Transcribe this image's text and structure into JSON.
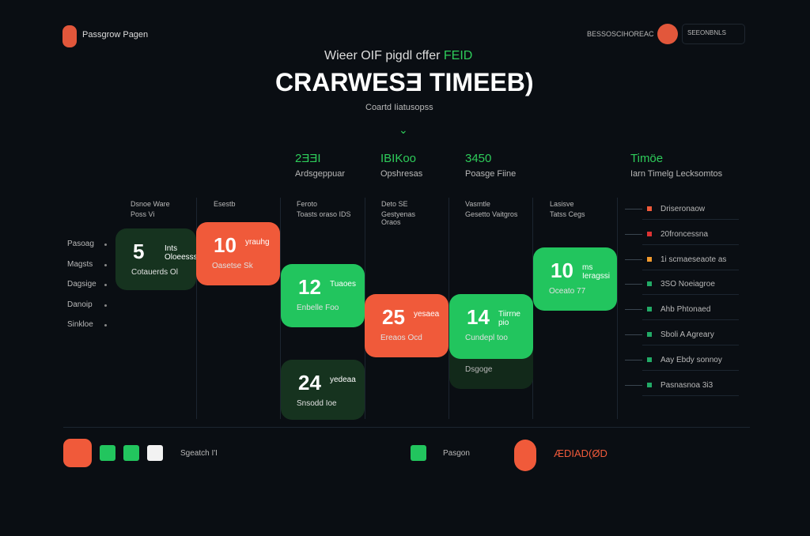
{
  "header": {
    "brand": "Passgrow Pagen",
    "status": "BESSOSCIHOREAC",
    "account": "SEEONBNLS"
  },
  "hero": {
    "kicker": "Wieer OIF pigdl cffer",
    "kicker_highlight": "FEID",
    "title": "CRARWESƎ TIMEEB)",
    "caption": "Coartd Iiatusopss"
  },
  "columns": [
    {
      "figure": "2ƎƎI",
      "label": "Ardsgeppuar"
    },
    {
      "figure": "IBIKoo",
      "label": "Opshresas"
    },
    {
      "figure": "3450",
      "label": "Poasge Fiine"
    },
    {
      "figure": "Timöe",
      "label": "Iarn Timelg Lecksomtos"
    }
  ],
  "subheads": [
    {
      "title": "Dsnoe Ware",
      "detail": "Poss Vi"
    },
    {
      "title": "Esestb",
      "detail": ""
    },
    {
      "title": "Feroto",
      "detail": "Toasts oraso IDS"
    },
    {
      "title": "Deto SE",
      "detail": "Gestyenas Oraos"
    },
    {
      "title": "Vasmtle",
      "detail": "Gesetto Vaitgros"
    },
    {
      "title": "Lasisve",
      "detail": "Tatss Cegs"
    }
  ],
  "rows": [
    "Pasoag",
    "Magsts",
    "Dagsige",
    "Danoip",
    "Sinkloe"
  ],
  "cards": [
    {
      "value": "5",
      "unit": "Ints Oloeesss",
      "label": "Cotauerds Ol"
    },
    {
      "value": "10",
      "unit": "yrauhg",
      "label": "Oasetse Sk"
    },
    {
      "value": "12",
      "unit": "Tuaoes",
      "label": "Enbelle Foo"
    },
    {
      "value": "25",
      "unit": "yesaea",
      "label": "Ereaos Ocd"
    },
    {
      "value": "14",
      "unit": "Tiirrne pio",
      "label": "Cundepl too"
    },
    {
      "value": "10",
      "unit": "ms Ieragssi",
      "label": "Oceato 77"
    },
    {
      "value": "24",
      "unit": "yedeaa",
      "label": "Snsodd Ioe"
    }
  ],
  "overflow_label": "Dsgoge",
  "legend": [
    "Driseronaow",
    "20froncessna",
    "1i scmaeseaote as",
    "3SO Noeiagroe",
    "Ahb Phtonaed",
    "Sboli A Agreary",
    "Aay Ebdy sonnoy",
    "Pasnasnoa 3i3"
  ],
  "footer": {
    "search": "Sgeatch I'I",
    "tag": "Pasgon",
    "code": "ÆDIAD(ØD"
  }
}
